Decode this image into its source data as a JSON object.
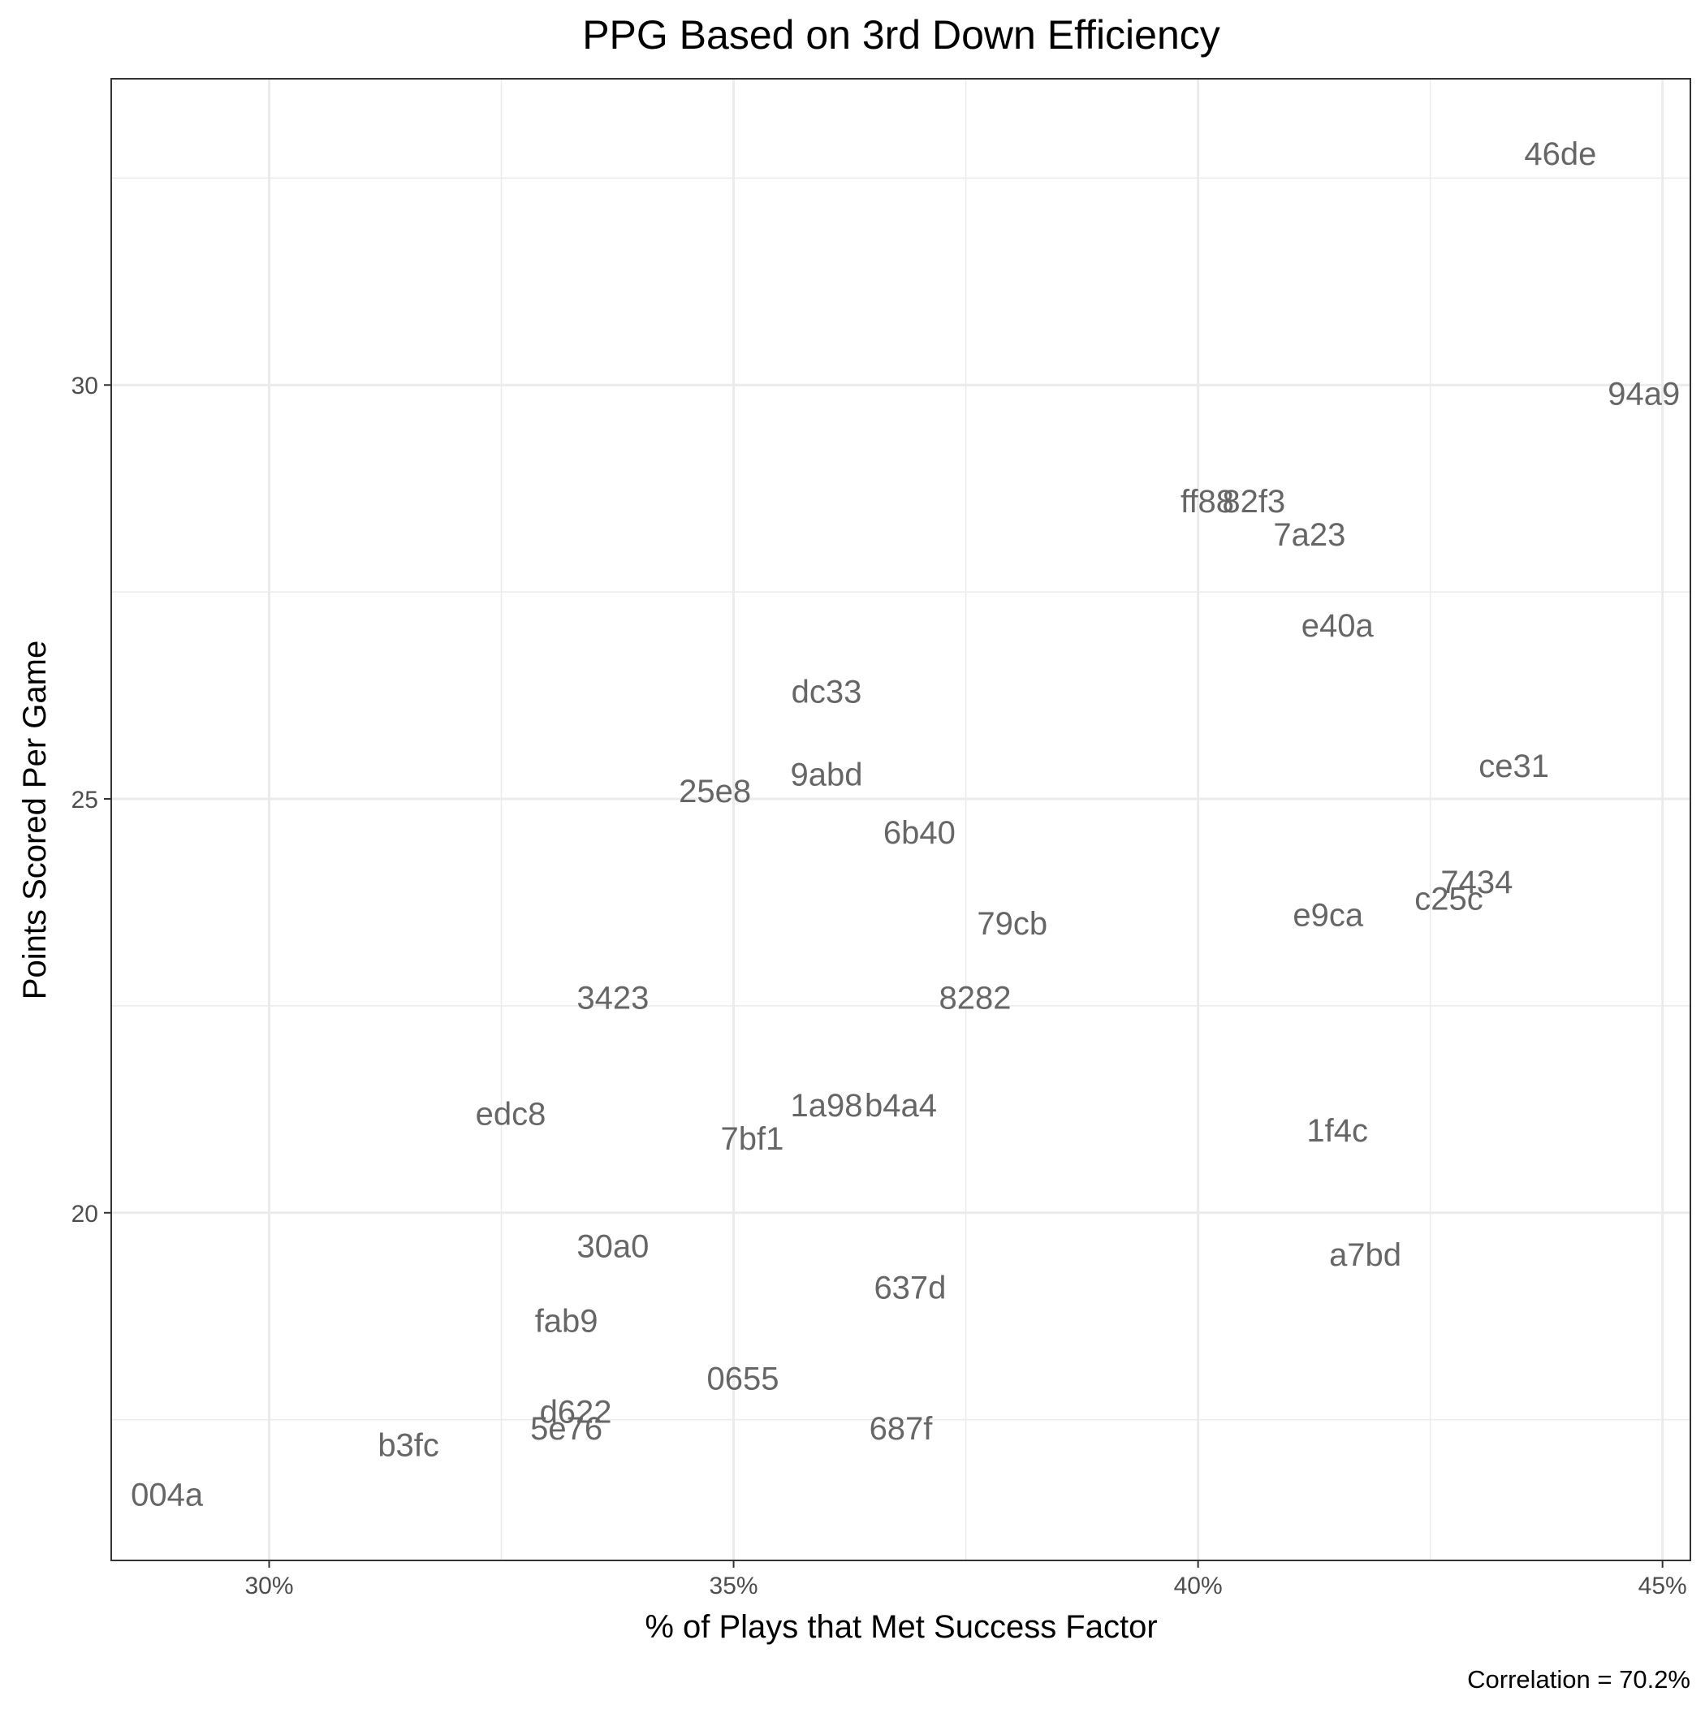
{
  "chart_data": {
    "type": "scatter",
    "title": "PPG Based on 3rd Down Efficiency",
    "xlabel": "% of Plays that Met Success Factor",
    "ylabel": "Points Scored Per Game",
    "caption": "Correlation = 70.2%",
    "xlim": [
      28.3,
      45.3
    ],
    "ylim": [
      15.8,
      33.7
    ],
    "x_ticks": [
      30,
      35,
      40,
      45
    ],
    "x_tick_labels": [
      "30%",
      "35%",
      "40%",
      "45%"
    ],
    "y_ticks": [
      20,
      25,
      30
    ],
    "y_tick_labels": [
      "20",
      "25",
      "30"
    ],
    "grid": true,
    "points": [
      {
        "label": "46de",
        "x": 43.9,
        "y": 32.8
      },
      {
        "label": "94a9",
        "x": 44.8,
        "y": 29.9
      },
      {
        "label": "ff88",
        "x": 40.1,
        "y": 28.6
      },
      {
        "label": "82f3",
        "x": 40.6,
        "y": 28.6
      },
      {
        "label": "7a23",
        "x": 41.2,
        "y": 28.2
      },
      {
        "label": "e40a",
        "x": 41.5,
        "y": 27.1
      },
      {
        "label": "dc33",
        "x": 36.0,
        "y": 26.3
      },
      {
        "label": "ce31",
        "x": 43.4,
        "y": 25.4
      },
      {
        "label": "9abd",
        "x": 36.0,
        "y": 25.3
      },
      {
        "label": "25e8",
        "x": 34.8,
        "y": 25.1
      },
      {
        "label": "6b40",
        "x": 37.0,
        "y": 24.6
      },
      {
        "label": "7434",
        "x": 43.0,
        "y": 24.0
      },
      {
        "label": "c25c",
        "x": 42.7,
        "y": 23.8
      },
      {
        "label": "e9ca",
        "x": 41.4,
        "y": 23.6
      },
      {
        "label": "79cb",
        "x": 38.0,
        "y": 23.5
      },
      {
        "label": "3423",
        "x": 33.7,
        "y": 22.6
      },
      {
        "label": "8282",
        "x": 37.6,
        "y": 22.6
      },
      {
        "label": "1a98",
        "x": 36.0,
        "y": 21.3
      },
      {
        "label": "b4a4",
        "x": 36.8,
        "y": 21.3
      },
      {
        "label": "edc8",
        "x": 32.6,
        "y": 21.2
      },
      {
        "label": "1f4c",
        "x": 41.5,
        "y": 21.0
      },
      {
        "label": "7bf1",
        "x": 35.2,
        "y": 20.9
      },
      {
        "label": "30a0",
        "x": 33.7,
        "y": 19.6
      },
      {
        "label": "a7bd",
        "x": 41.8,
        "y": 19.5
      },
      {
        "label": "637d",
        "x": 36.9,
        "y": 19.1
      },
      {
        "label": "fab9",
        "x": 33.2,
        "y": 18.7
      },
      {
        "label": "0655",
        "x": 35.1,
        "y": 18.0
      },
      {
        "label": "d622",
        "x": 33.3,
        "y": 17.6
      },
      {
        "label": "5e76",
        "x": 33.2,
        "y": 17.4
      },
      {
        "label": "687f",
        "x": 36.8,
        "y": 17.4
      },
      {
        "label": "b3fc",
        "x": 31.5,
        "y": 17.2
      },
      {
        "label": "004a",
        "x": 28.9,
        "y": 16.6
      }
    ]
  }
}
